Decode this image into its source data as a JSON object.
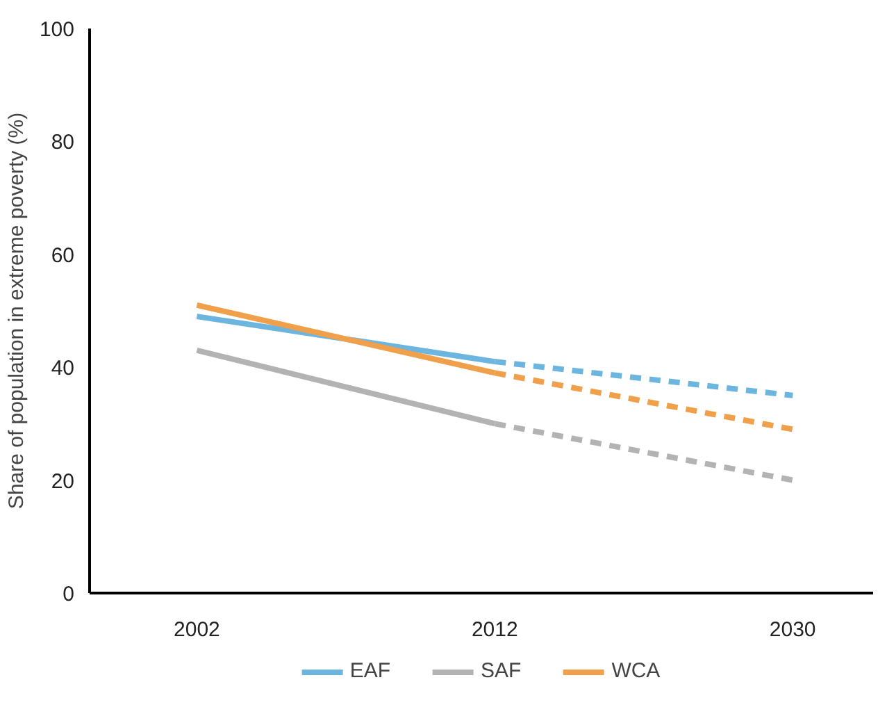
{
  "chart_data": {
    "type": "line",
    "ylabel": "Share of population in extreme poverty (%)",
    "categories": [
      "2002",
      "2012",
      "2030"
    ],
    "series": [
      {
        "name": "EAF",
        "color": "#6bb5de",
        "values": [
          49,
          41,
          null
        ]
      },
      {
        "name": "SAF",
        "color": "#b3b3b3",
        "values": [
          43,
          30,
          null
        ]
      },
      {
        "name": "WCA",
        "color": "#f0a04b",
        "values": [
          51,
          39,
          null
        ]
      },
      {
        "color": "#6bb5de",
        "values": [
          null,
          41,
          35
        ],
        "line_style": "dashed"
      },
      {
        "color": "#b3b3b3",
        "values": [
          null,
          30,
          20
        ],
        "line_style": "dashed"
      },
      {
        "color": "#f0a04b",
        "values": [
          null,
          39,
          29
        ],
        "line_style": "dashed"
      }
    ],
    "ylim": [
      0,
      100
    ],
    "yticks": [
      0,
      20,
      40,
      60,
      80,
      100
    ],
    "grid": false,
    "legend": "bottom",
    "marker": "none",
    "line_style": "solid"
  }
}
